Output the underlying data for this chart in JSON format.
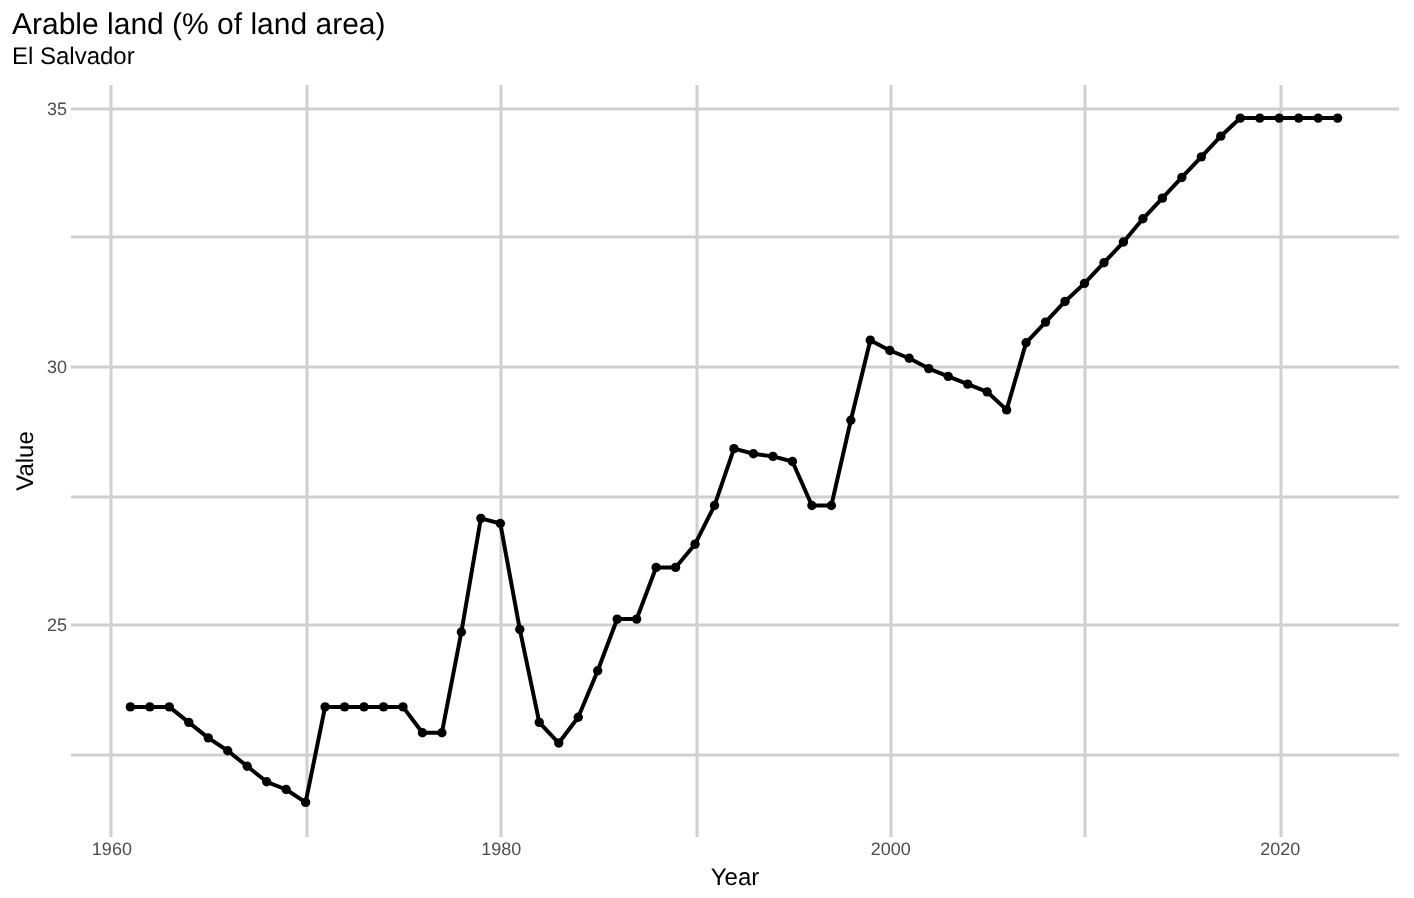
{
  "chart_data": {
    "type": "line",
    "title": "Arable land (% of land area)",
    "subtitle": "El Salvador",
    "xlabel": "Year",
    "ylabel": "Value",
    "x": [
      1961,
      1962,
      1963,
      1964,
      1965,
      1966,
      1967,
      1968,
      1969,
      1970,
      1971,
      1972,
      1973,
      1974,
      1975,
      1976,
      1977,
      1978,
      1979,
      1980,
      1981,
      1982,
      1983,
      1984,
      1985,
      1986,
      1987,
      1988,
      1989,
      1990,
      1991,
      1992,
      1993,
      1994,
      1995,
      1996,
      1997,
      1998,
      1999,
      2000,
      2001,
      2002,
      2003,
      2004,
      2005,
      2006,
      2007,
      2008,
      2009,
      2010,
      2011,
      2012,
      2013,
      2014,
      2015,
      2016,
      2017,
      2018,
      2019,
      2020,
      2021,
      2022,
      2023
    ],
    "series": [
      {
        "color": "#000000",
        "values": [
          23.4,
          23.4,
          23.4,
          23.1,
          22.8,
          22.55,
          22.25,
          21.95,
          21.8,
          21.55,
          23.4,
          23.4,
          23.4,
          23.4,
          23.4,
          22.9,
          22.9,
          24.85,
          27.05,
          26.95,
          24.9,
          23.1,
          22.7,
          23.2,
          24.1,
          25.1,
          25.1,
          26.1,
          26.1,
          26.55,
          27.3,
          28.4,
          28.3,
          28.25,
          28.15,
          27.3,
          27.3,
          28.95,
          30.5,
          30.3,
          30.15,
          29.95,
          29.8,
          29.65,
          29.5,
          29.15,
          30.45,
          30.85,
          31.25,
          31.6,
          32.0,
          32.4,
          32.85,
          33.25,
          33.65,
          34.05,
          34.45,
          34.8,
          34.8,
          34.8,
          34.8,
          34.8,
          34.8
        ]
      }
    ],
    "xlim": [
      1957.9,
      2026.1
    ],
    "ylim": [
      20.9,
      35.46
    ],
    "xticks": [
      1960,
      {
        "value": 1970,
        "label": null
      },
      1980,
      {
        "value": 1990,
        "label": null
      },
      2000,
      {
        "value": 2010,
        "label": null
      },
      2020
    ],
    "yticks": [
      {
        "value": 22.5,
        "label": null
      },
      25,
      {
        "value": 27.5,
        "label": null
      },
      30,
      {
        "value": 32.5,
        "label": null
      },
      35
    ],
    "grid": true,
    "marker": "circle",
    "line_style": "solid"
  }
}
